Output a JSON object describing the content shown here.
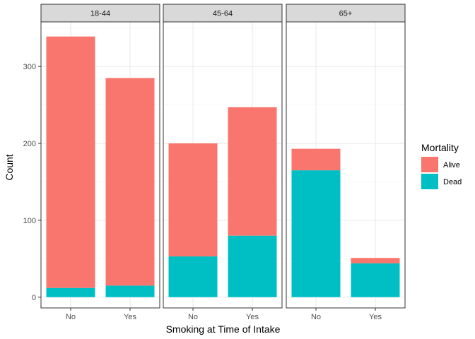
{
  "chart_data": {
    "type": "bar",
    "stacked": true,
    "facet_by": "age group",
    "facets": [
      {
        "label": "18-44",
        "categories": [
          "No",
          "Yes"
        ],
        "series": [
          {
            "name": "Alive",
            "values": [
              327,
              270
            ]
          },
          {
            "name": "Dead",
            "values": [
              12,
              15
            ]
          }
        ]
      },
      {
        "label": "45-64",
        "categories": [
          "No",
          "Yes"
        ],
        "series": [
          {
            "name": "Alive",
            "values": [
              147,
              167
            ]
          },
          {
            "name": "Dead",
            "values": [
              53,
              80
            ]
          }
        ]
      },
      {
        "label": "65+",
        "categories": [
          "No",
          "Yes"
        ],
        "series": [
          {
            "name": "Alive",
            "values": [
              28,
              7
            ]
          },
          {
            "name": "Dead",
            "values": [
              165,
              44
            ]
          }
        ]
      }
    ],
    "xlabel": "Smoking at Time of Intake",
    "ylabel": "Count",
    "ylim": [
      -14,
      358
    ],
    "yticks": [
      0,
      100,
      200,
      300
    ],
    "grid": true,
    "legend": {
      "title": "Mortality",
      "placement": "right",
      "entries": [
        {
          "name": "Alive",
          "color": "#F8766D"
        },
        {
          "name": "Dead",
          "color": "#00BFC4"
        }
      ]
    }
  }
}
